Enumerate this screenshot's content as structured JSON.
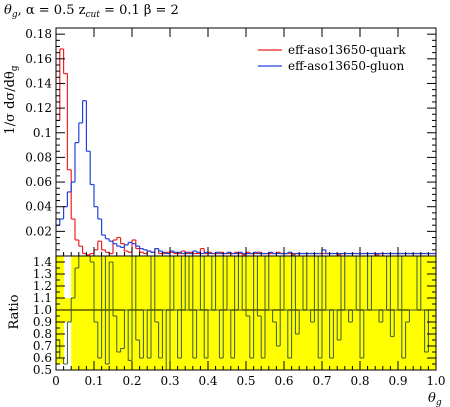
{
  "chart_data": [
    {
      "type": "line",
      "title": "θg, α = 0.5 zcut = 0.1 β = 2",
      "title_parts": {
        "theta": "θ",
        "theta_sub": "g",
        "alpha": ", α = 0.5 z",
        "z_sub": "cut",
        "rest": " = 0.1 β = 2"
      },
      "ylabel": "1/σ dσ/dθg",
      "ylabel_parts": {
        "main": "1/σ dσ/dθ",
        "sub": "g"
      },
      "xlim": [
        0,
        1.0
      ],
      "ylim": [
        0,
        0.185
      ],
      "yticks": [
        "0.02",
        "0.04",
        "0.06",
        "0.08",
        "0.1",
        "0.12",
        "0.14",
        "0.16",
        "0.18"
      ],
      "legend_position": "top-right",
      "grid": false,
      "bin_width": 0.01,
      "x": [
        0.005,
        0.015,
        0.025,
        0.035,
        0.045,
        0.055,
        0.065,
        0.075,
        0.085,
        0.095,
        0.105,
        0.115,
        0.125,
        0.135,
        0.145,
        0.155,
        0.165,
        0.175,
        0.185,
        0.195,
        0.205,
        0.215,
        0.225,
        0.235,
        0.245,
        0.255,
        0.265,
        0.275,
        0.285,
        0.295,
        0.305,
        0.315,
        0.325,
        0.335,
        0.345,
        0.355,
        0.365,
        0.375,
        0.385,
        0.395,
        0.405,
        0.415,
        0.425,
        0.435,
        0.445,
        0.455,
        0.465,
        0.475,
        0.485,
        0.495,
        0.505,
        0.515,
        0.525,
        0.535,
        0.545,
        0.555,
        0.565,
        0.575,
        0.585,
        0.595,
        0.605,
        0.615,
        0.625,
        0.635,
        0.645,
        0.655,
        0.665,
        0.675,
        0.685,
        0.695,
        0.705,
        0.715,
        0.725,
        0.735,
        0.745,
        0.755,
        0.765,
        0.775,
        0.785,
        0.795,
        0.805,
        0.815,
        0.825,
        0.835,
        0.845,
        0.855,
        0.865,
        0.875,
        0.885,
        0.895,
        0.905,
        0.915,
        0.925,
        0.935,
        0.945,
        0.955,
        0.965,
        0.975,
        0.985,
        0.995
      ],
      "series": [
        {
          "name": "eff-aso13650-quark",
          "color": "#ee2222",
          "values": [
            0.11,
            0.168,
            0.148,
            0.07,
            0.03,
            0.013,
            0.008,
            0.002,
            0.001,
            0.002,
            0.005,
            0.012,
            0.005,
            0.003,
            0.002,
            0.013,
            0.015,
            0.01,
            0.004,
            0.003,
            0.013,
            0.006,
            0.003,
            0.002,
            0.004,
            0.003,
            0.006,
            0.002,
            0.002,
            0.003,
            0.003,
            0.002,
            0.002,
            0.004,
            0.002,
            0.003,
            0.002,
            0.002,
            0.006,
            0.002,
            0.003,
            0.002,
            0.002,
            0.003,
            0.002,
            0.002,
            0.002,
            0.003,
            0.002,
            0.001,
            0.003,
            0.002,
            0.002,
            0.003,
            0.002,
            0.002,
            0.002,
            0.002,
            0.003,
            0.002,
            0.002,
            0.002,
            0.001,
            0.002,
            0.002,
            0.002,
            0.002,
            0.002,
            0.002,
            0.002,
            0.002,
            0.002,
            0.002,
            0.002,
            0.001,
            0.002,
            0.002,
            0.002,
            0.002,
            0.002,
            0.002,
            0.002,
            0.002,
            0.002,
            0.001,
            0.002,
            0.002,
            0.002,
            0.002,
            0.002,
            0.002,
            0.002,
            0.002,
            0.002,
            0.002,
            0.002,
            0.002,
            0.002,
            0.002,
            0.002
          ]
        },
        {
          "name": "eff-aso13650-gluon",
          "color": "#2244dd",
          "values": [
            0.025,
            0.03,
            0.04,
            0.052,
            0.06,
            0.092,
            0.108,
            0.126,
            0.085,
            0.058,
            0.04,
            0.03,
            0.017,
            0.014,
            0.012,
            0.01,
            0.008,
            0.007,
            0.009,
            0.011,
            0.01,
            0.008,
            0.006,
            0.005,
            0.004,
            0.003,
            0.006,
            0.004,
            0.003,
            0.002,
            0.004,
            0.003,
            0.003,
            0.002,
            0.003,
            0.002,
            0.004,
            0.003,
            0.002,
            0.003,
            0.002,
            0.002,
            0.003,
            0.002,
            0.002,
            0.003,
            0.002,
            0.002,
            0.003,
            0.002,
            0.002,
            0.002,
            0.003,
            0.002,
            0.002,
            0.002,
            0.003,
            0.002,
            0.002,
            0.002,
            0.002,
            0.003,
            0.002,
            0.002,
            0.002,
            0.002,
            0.002,
            0.002,
            0.002,
            0.002,
            0.005,
            0.002,
            0.002,
            0.002,
            0.002,
            0.002,
            0.002,
            0.002,
            0.002,
            0.002,
            0.002,
            0.002,
            0.002,
            0.002,
            0.002,
            0.002,
            0.002,
            0.002,
            0.002,
            0.002,
            0.002,
            0.002,
            0.002,
            0.002,
            0.002,
            0.002,
            0.002,
            0.002,
            0.002,
            0.002
          ]
        }
      ]
    },
    {
      "type": "line",
      "ylabel": "Ratio",
      "xlabel": "θg",
      "xlabel_parts": {
        "main": "θ",
        "sub": "g"
      },
      "xlim": [
        0,
        1.0
      ],
      "ylim": [
        0.5,
        1.45
      ],
      "xticks": [
        "0",
        "0.1",
        "0.2",
        "0.3",
        "0.4",
        "0.5",
        "0.6",
        "0.7",
        "0.8",
        "0.9",
        "1.0"
      ],
      "yticks": [
        "0.5",
        "0.6",
        "0.7",
        "0.8",
        "0.9",
        "1.0",
        "1.1",
        "1.2",
        "1.3",
        "1.4"
      ],
      "reference_line": 1.0,
      "band_color": "#ffff00",
      "band_label": "",
      "bin_width": 0.01,
      "ratio_series": {
        "color": "#3b5b3b",
        "values": [
          0.75,
          0.6,
          0.55,
          0.9,
          1.1,
          1.35,
          1.6,
          1.5,
          1.7,
          1.4,
          0.9,
          0.6,
          1.7,
          0.55,
          1.4,
          0.95,
          0.65,
          0.68,
          1.0,
          0.58,
          1.6,
          0.75,
          0.6,
          1.0,
          0.6,
          1.6,
          0.9,
          0.6,
          1.0,
          0.5,
          1.6,
          1.0,
          0.6,
          1.5,
          1.0,
          1.6,
          0.6,
          1.0,
          1.6,
          0.6,
          1.0,
          1.6,
          1.0,
          0.6,
          1.6,
          1.0,
          0.6,
          1.5,
          1.0,
          1.5,
          0.95,
          0.6,
          1.6,
          0.95,
          0.6,
          1.6,
          1.0,
          0.9,
          0.7,
          1.6,
          1.0,
          0.6,
          1.6,
          0.8,
          1.0,
          1.6,
          1.0,
          0.9,
          1.6,
          0.6,
          1.5,
          1.0,
          0.6,
          1.0,
          0.75,
          1.6,
          1.0,
          0.9,
          1.0,
          1.6,
          0.6,
          1.0,
          1.5,
          1.0,
          1.0,
          0.9,
          1.0,
          1.6,
          0.78,
          1.0,
          1.6,
          0.6,
          0.9,
          1.0,
          1.0,
          1.5,
          1.0,
          0.65,
          1.0,
          1.0
        ]
      }
    }
  ]
}
